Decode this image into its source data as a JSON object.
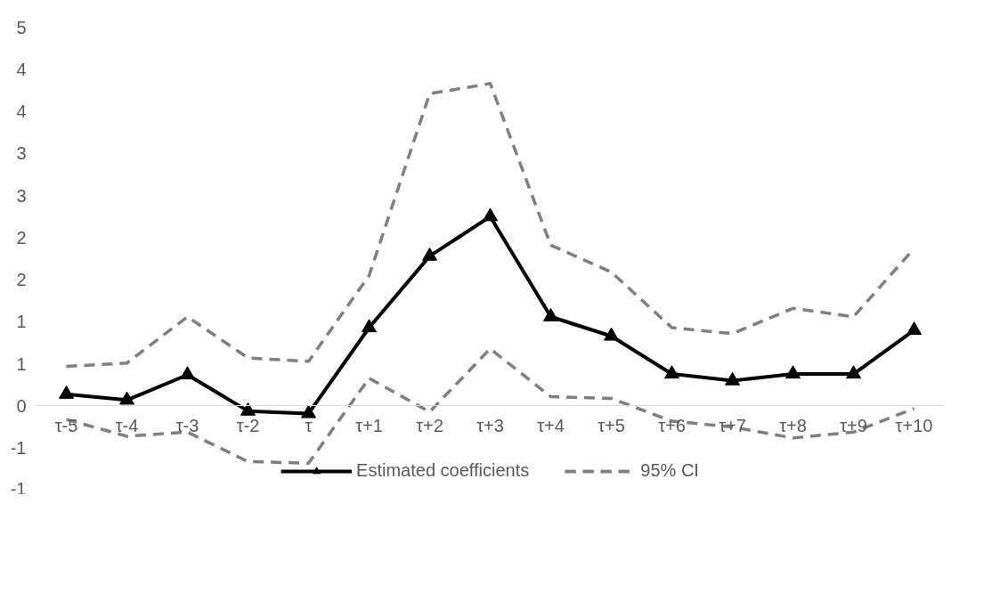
{
  "chart_data": {
    "type": "line",
    "categories": [
      "τ-5",
      "τ-4",
      "τ-3",
      "τ-2",
      "τ",
      "τ+1",
      "τ+2",
      "τ+3",
      "τ+4",
      "τ+5",
      "τ+6",
      "τ+7",
      "τ+8",
      "τ+9",
      "τ+10"
    ],
    "series": [
      {
        "name": "Estimated coefficients",
        "color": "#000000",
        "marker": "triangle",
        "line_style": "solid",
        "values": [
          0.14,
          0.07,
          0.37,
          -0.06,
          -0.09,
          0.93,
          1.78,
          2.25,
          1.06,
          0.83,
          0.38,
          0.3,
          0.38,
          0.38,
          0.9
        ]
      },
      {
        "name": "95% CI",
        "color": "#7f7f7f",
        "marker": "none",
        "line_style": "dashed",
        "values": [
          0.47,
          0.51,
          1.06,
          0.57,
          0.53,
          1.55,
          3.71,
          3.83,
          1.91,
          1.59,
          0.93,
          0.86,
          1.16,
          1.06,
          1.87
        ]
      },
      {
        "color": "#7f7f7f",
        "marker": "none",
        "line_style": "dashed",
        "values": [
          -0.16,
          -0.36,
          -0.31,
          -0.66,
          -0.68,
          0.33,
          -0.07,
          0.68,
          0.11,
          0.09,
          -0.18,
          -0.25,
          -0.38,
          -0.31,
          -0.03
        ]
      }
    ],
    "ylim": [
      -1,
      4.5
    ],
    "yticks": [
      {
        "value": -1,
        "label": "-1"
      },
      {
        "value": -0.5,
        "label": "-1"
      },
      0,
      {
        "value": 0.5,
        "label": "1"
      },
      1,
      {
        "value": 1.5,
        "label": "2"
      },
      2,
      {
        "value": 2.5,
        "label": "3"
      },
      3,
      {
        "value": 3.5,
        "label": "4"
      },
      4,
      {
        "value": 4.5,
        "label": "5"
      }
    ],
    "grid": false,
    "legend": "bottom"
  }
}
